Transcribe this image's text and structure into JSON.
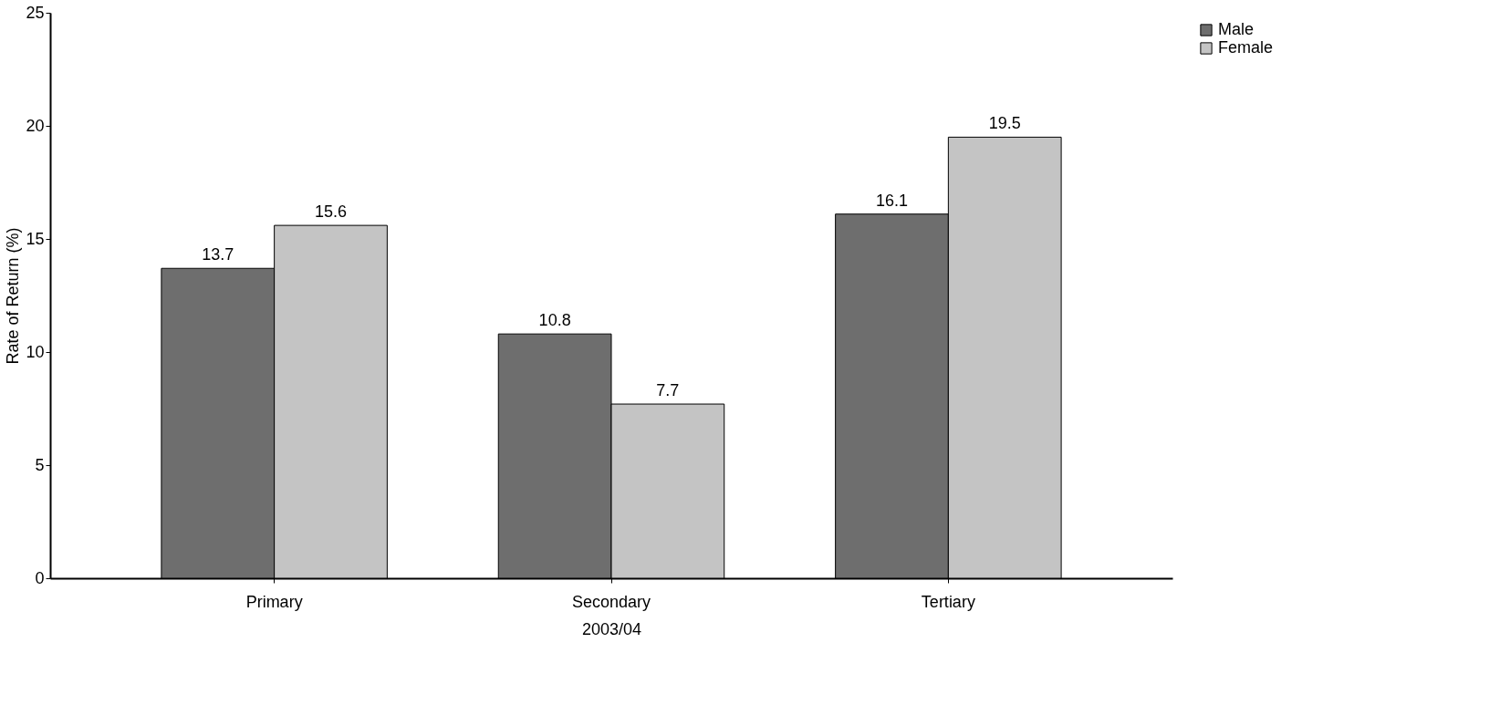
{
  "chart_data": {
    "type": "bar",
    "xlabel": "2003/04",
    "ylabel": "Rate of Return (%)",
    "categories": [
      "Primary",
      "Secondary",
      "Tertiary"
    ],
    "series": [
      {
        "name": "Male",
        "color": "#6e6e6e",
        "values": [
          13.7,
          10.8,
          16.1
        ]
      },
      {
        "name": "Female",
        "color": "#c4c4c4",
        "values": [
          15.6,
          7.7,
          19.5
        ]
      }
    ],
    "ylim": [
      0,
      25
    ],
    "yticks": [
      0,
      5,
      10,
      15,
      20,
      25
    ],
    "grid": false,
    "legend": "top right",
    "data_labels": true
  }
}
